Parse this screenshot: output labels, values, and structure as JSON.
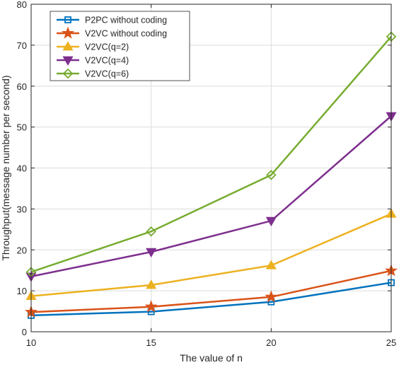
{
  "chart_data": {
    "type": "line",
    "title": "",
    "xlabel": "The value of n",
    "ylabel": "Throughput(message number per second)",
    "xlim": [
      10,
      25
    ],
    "ylim": [
      0,
      80
    ],
    "x_ticks": [
      10,
      15,
      20,
      25
    ],
    "y_ticks": [
      0,
      10,
      20,
      30,
      40,
      50,
      60,
      70,
      80
    ],
    "grid": true,
    "legend_position": "top-left",
    "x": [
      10,
      15,
      20,
      25
    ],
    "series": [
      {
        "name": "P2PC without coding",
        "color": "#0072BD",
        "marker": "square",
        "values": [
          4.0,
          4.9,
          7.3,
          12.0
        ]
      },
      {
        "name": "V2VC without coding",
        "color": "#D95319",
        "marker": "star",
        "values": [
          4.8,
          6.1,
          8.5,
          14.9
        ]
      },
      {
        "name": "V2VC(q=2)",
        "color": "#EDB120",
        "marker": "triangle-up",
        "values": [
          8.7,
          11.4,
          16.2,
          28.8
        ]
      },
      {
        "name": "V2VC(q=4)",
        "color": "#7E2F8E",
        "marker": "triangle-down",
        "values": [
          13.5,
          19.5,
          27.1,
          52.7
        ]
      },
      {
        "name": "V2VC(q=6)",
        "color": "#77AC30",
        "marker": "diamond",
        "values": [
          14.6,
          24.5,
          38.3,
          72.1
        ]
      }
    ]
  }
}
